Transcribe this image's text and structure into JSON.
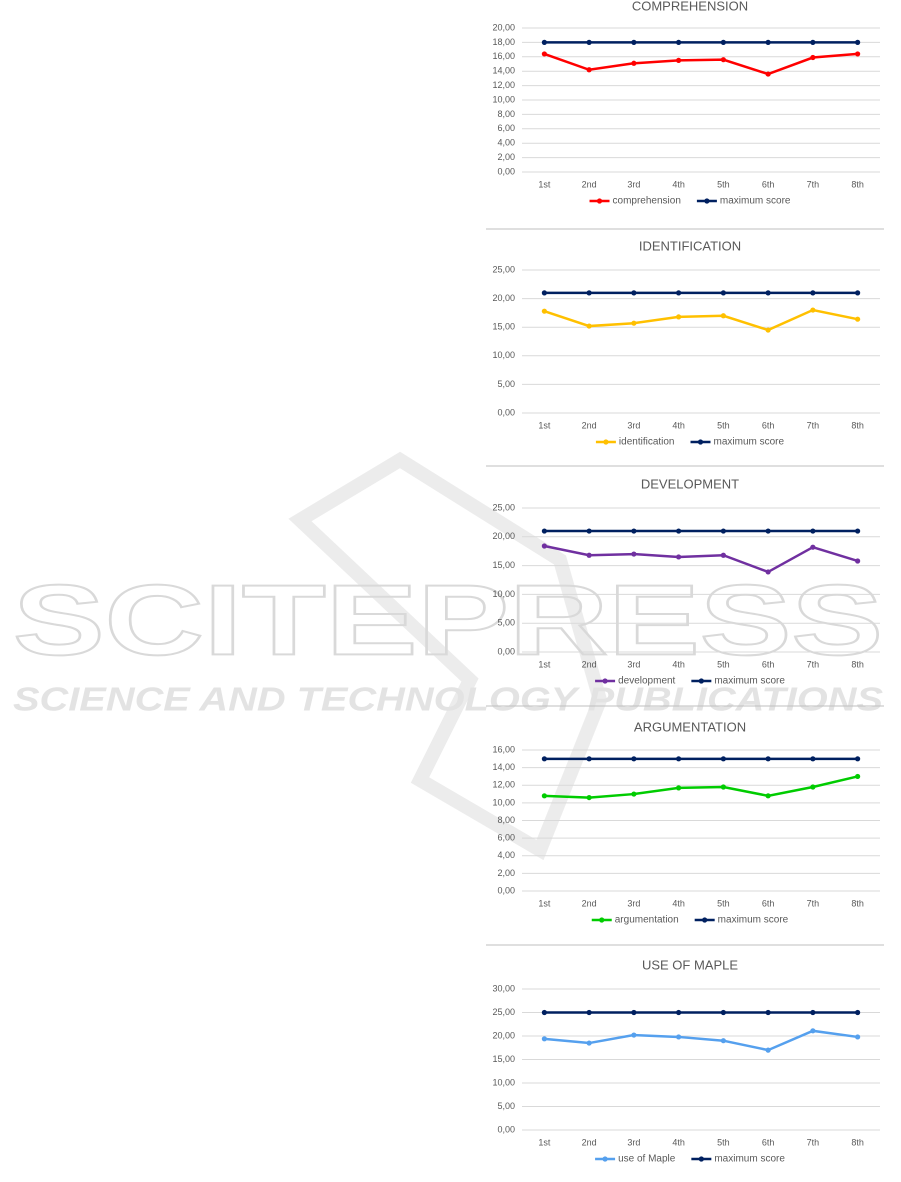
{
  "watermark": {
    "title": "SCITEPRESS",
    "subtitle": "SCIENCE AND TECHNOLOGY PUBLICATIONS"
  },
  "chart_data": [
    {
      "type": "line",
      "title": "COMPREHENSION",
      "categories": [
        "1st",
        "2nd",
        "3rd",
        "4th",
        "5th",
        "6th",
        "7th",
        "8th"
      ],
      "series": [
        {
          "name": "comprehension",
          "color": "#ff0000",
          "values": [
            16.4,
            14.2,
            15.1,
            15.5,
            15.6,
            13.6,
            15.9,
            16.4
          ]
        },
        {
          "name": "maximum score",
          "color": "#002060",
          "values": [
            18,
            18,
            18,
            18,
            18,
            18,
            18,
            18
          ]
        }
      ],
      "ylim": [
        0,
        20
      ],
      "yticks": [
        {
          "value": 0,
          "label": "0,00"
        },
        {
          "value": 2,
          "label": "2,00"
        },
        {
          "value": 4,
          "label": "4,00"
        },
        {
          "value": 6,
          "label": "6,00"
        },
        {
          "value": 8,
          "label": "8,00"
        },
        {
          "value": 10,
          "label": "10,00"
        },
        {
          "value": 12,
          "label": "12,00"
        },
        {
          "value": 14,
          "label": "14,00"
        },
        {
          "value": 16,
          "label": "16,00"
        },
        {
          "value": 18,
          "label": "18,00"
        },
        {
          "value": 20,
          "label": "20,00"
        }
      ],
      "grid": true,
      "legend": "bottom"
    },
    {
      "type": "line",
      "title": "IDENTIFICATION",
      "categories": [
        "1st",
        "2nd",
        "3rd",
        "4th",
        "5th",
        "6th",
        "7th",
        "8th"
      ],
      "series": [
        {
          "name": "identification",
          "color": "#ffc000",
          "values": [
            17.8,
            15.2,
            15.7,
            16.8,
            17.0,
            14.5,
            18.0,
            16.4
          ]
        },
        {
          "name": "maximum score",
          "color": "#002060",
          "values": [
            21,
            21,
            21,
            21,
            21,
            21,
            21,
            21
          ]
        }
      ],
      "ylim": [
        0,
        25
      ],
      "yticks": [
        {
          "value": 0,
          "label": "0,00"
        },
        {
          "value": 5,
          "label": "5,00"
        },
        {
          "value": 10,
          "label": "10,00"
        },
        {
          "value": 15,
          "label": "15,00"
        },
        {
          "value": 20,
          "label": "20,00"
        },
        {
          "value": 25,
          "label": "25,00"
        }
      ],
      "grid": true,
      "legend": "bottom"
    },
    {
      "type": "line",
      "title": "DEVELOPMENT",
      "categories": [
        "1st",
        "2nd",
        "3rd",
        "4th",
        "5th",
        "6th",
        "7th",
        "8th"
      ],
      "series": [
        {
          "name": "development",
          "color": "#7030a0",
          "values": [
            18.4,
            16.8,
            17.0,
            16.5,
            16.8,
            13.9,
            18.2,
            15.8
          ]
        },
        {
          "name": "maximum score",
          "color": "#002060",
          "values": [
            21,
            21,
            21,
            21,
            21,
            21,
            21,
            21
          ]
        }
      ],
      "ylim": [
        0,
        25
      ],
      "yticks": [
        {
          "value": 0,
          "label": "0,00"
        },
        {
          "value": 5,
          "label": "5,00"
        },
        {
          "value": 10,
          "label": "10,00"
        },
        {
          "value": 15,
          "label": "15,00"
        },
        {
          "value": 20,
          "label": "20,00"
        },
        {
          "value": 25,
          "label": "25,00"
        }
      ],
      "grid": true,
      "legend": "bottom"
    },
    {
      "type": "line",
      "title": "ARGUMENTATION",
      "categories": [
        "1st",
        "2nd",
        "3rd",
        "4th",
        "5th",
        "6th",
        "7th",
        "8th"
      ],
      "series": [
        {
          "name": "argumentation",
          "color": "#00cc00",
          "values": [
            10.8,
            10.6,
            11.0,
            11.7,
            11.8,
            10.8,
            11.8,
            13.0
          ]
        },
        {
          "name": "maximum score",
          "color": "#002060",
          "values": [
            15,
            15,
            15,
            15,
            15,
            15,
            15,
            15
          ]
        }
      ],
      "ylim": [
        0,
        16
      ],
      "yticks": [
        {
          "value": 0,
          "label": "0,00"
        },
        {
          "value": 2,
          "label": "2,00"
        },
        {
          "value": 4,
          "label": "4,00"
        },
        {
          "value": 6,
          "label": "6,00"
        },
        {
          "value": 8,
          "label": "8,00"
        },
        {
          "value": 10,
          "label": "10,00"
        },
        {
          "value": 12,
          "label": "12,00"
        },
        {
          "value": 14,
          "label": "14,00"
        },
        {
          "value": 16,
          "label": "16,00"
        }
      ],
      "grid": true,
      "legend": "bottom"
    },
    {
      "type": "line",
      "title": "USE OF MAPLE",
      "categories": [
        "1st",
        "2nd",
        "3rd",
        "4th",
        "5th",
        "6th",
        "7th",
        "8th"
      ],
      "series": [
        {
          "name": "use of Maple",
          "color": "#55a0ee",
          "values": [
            19.4,
            18.5,
            20.2,
            19.8,
            19.0,
            17.0,
            21.1,
            19.8
          ]
        },
        {
          "name": "maximum score",
          "color": "#002060",
          "values": [
            25,
            25,
            25,
            25,
            25,
            25,
            25,
            25
          ]
        }
      ],
      "ylim": [
        0,
        30
      ],
      "yticks": [
        {
          "value": 0,
          "label": "0,00"
        },
        {
          "value": 5,
          "label": "5,00"
        },
        {
          "value": 10,
          "label": "10,00"
        },
        {
          "value": 15,
          "label": "15,00"
        },
        {
          "value": 20,
          "label": "20,00"
        },
        {
          "value": 25,
          "label": "25,00"
        },
        {
          "value": 30,
          "label": "30,00"
        }
      ],
      "grid": true,
      "legend": "bottom"
    }
  ]
}
